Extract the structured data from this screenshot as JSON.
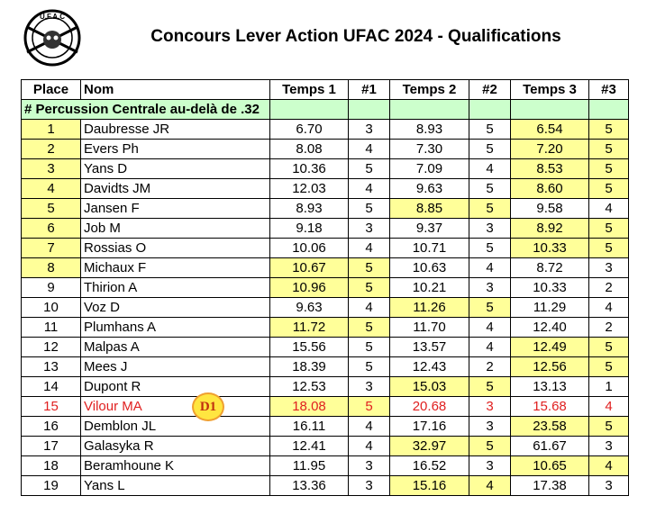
{
  "header": {
    "logo": "U.F.A.C",
    "title": "Concours Lever Action UFAC 2024 - Qualifications"
  },
  "table": {
    "columns": [
      "Place",
      "Nom",
      "Temps 1",
      "#1",
      "Temps 2",
      "#2",
      "Temps 3",
      "#3"
    ],
    "section": "# Percussion Centrale au-delà de .32",
    "rows": [
      [
        1,
        "Daubresse JR",
        "6.70",
        3,
        "8.93",
        5,
        "6.54",
        5
      ],
      [
        2,
        "Evers Ph",
        "8.08",
        4,
        "7.30",
        5,
        "7.20",
        5
      ],
      [
        3,
        "Yans D",
        "10.36",
        5,
        "7.09",
        4,
        "8.53",
        5
      ],
      [
        4,
        "Davidts JM",
        "12.03",
        4,
        "9.63",
        5,
        "8.60",
        5
      ],
      [
        5,
        "Jansen F",
        "8.93",
        5,
        "8.85",
        5,
        "9.58",
        4
      ],
      [
        6,
        "Job M",
        "9.18",
        3,
        "9.37",
        3,
        "8.92",
        5
      ],
      [
        7,
        "Rossias O",
        "10.06",
        4,
        "10.71",
        5,
        "10.33",
        5
      ],
      [
        8,
        "Michaux F",
        "10.67",
        5,
        "10.63",
        4,
        "8.72",
        3
      ],
      [
        9,
        "Thirion A",
        "10.96",
        5,
        "10.21",
        3,
        "10.33",
        2
      ],
      [
        10,
        "Voz D",
        "9.63",
        4,
        "11.26",
        5,
        "11.29",
        4
      ],
      [
        11,
        "Plumhans A",
        "11.72",
        5,
        "11.70",
        4,
        "12.40",
        2
      ],
      [
        12,
        "Malpas A",
        "15.56",
        5,
        "13.57",
        4,
        "12.49",
        5
      ],
      [
        13,
        "Mees J",
        "18.39",
        5,
        "12.43",
        2,
        "12.56",
        5
      ],
      [
        14,
        "Dupont R",
        "12.53",
        3,
        "15.03",
        5,
        "13.13",
        1
      ],
      [
        15,
        "Vilour MA",
        "18.08",
        5,
        "20.68",
        3,
        "15.68",
        4
      ],
      [
        16,
        "Demblon JL",
        "16.11",
        4,
        "17.16",
        3,
        "23.58",
        5
      ],
      [
        17,
        "Galasyka R",
        "12.41",
        4,
        "32.97",
        5,
        "61.67",
        3
      ],
      [
        18,
        "Beramhoune K",
        "11.95",
        3,
        "16.52",
        3,
        "10.65",
        4
      ],
      [
        19,
        "Yans L",
        "13.36",
        3,
        "15.16",
        4,
        "17.38",
        3
      ]
    ],
    "badge": "D1"
  }
}
